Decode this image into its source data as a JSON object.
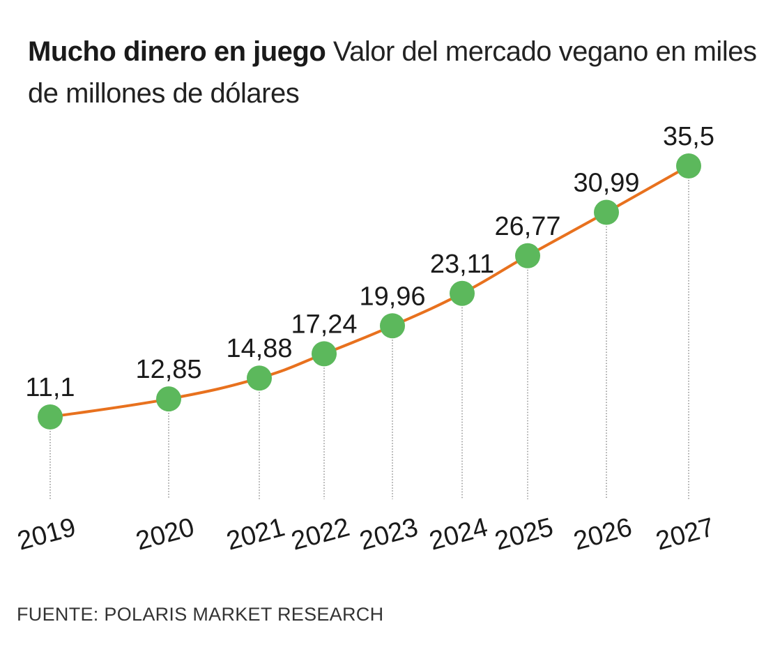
{
  "header": {
    "title": "Mucho dinero en juego",
    "subtitle": "Valor del mercado vegano en miles de millones de dólares"
  },
  "source": "FUENTE: POLARIS MARKET RESEARCH",
  "colors": {
    "line": "#e8711e",
    "marker": "#5cb85c",
    "guide": "#555555",
    "text": "#1a1a1a"
  },
  "chart_data": {
    "type": "line",
    "categories": [
      "2019",
      "2020",
      "2021",
      "2022",
      "2023",
      "2024",
      "2025",
      "2026",
      "2027"
    ],
    "values": [
      11.1,
      12.85,
      14.88,
      17.24,
      19.96,
      23.11,
      26.77,
      30.99,
      35.5
    ],
    "data_labels": [
      "11,1",
      "12,85",
      "14,88",
      "17,24",
      "19,96",
      "23,11",
      "26,77",
      "30,99",
      "35,5"
    ],
    "title": "Mucho dinero en juego",
    "subtitle": "Valor del mercado vegano en miles de millones de dólares",
    "xlabel": "",
    "ylabel": "",
    "grid": false,
    "legend": "none"
  }
}
